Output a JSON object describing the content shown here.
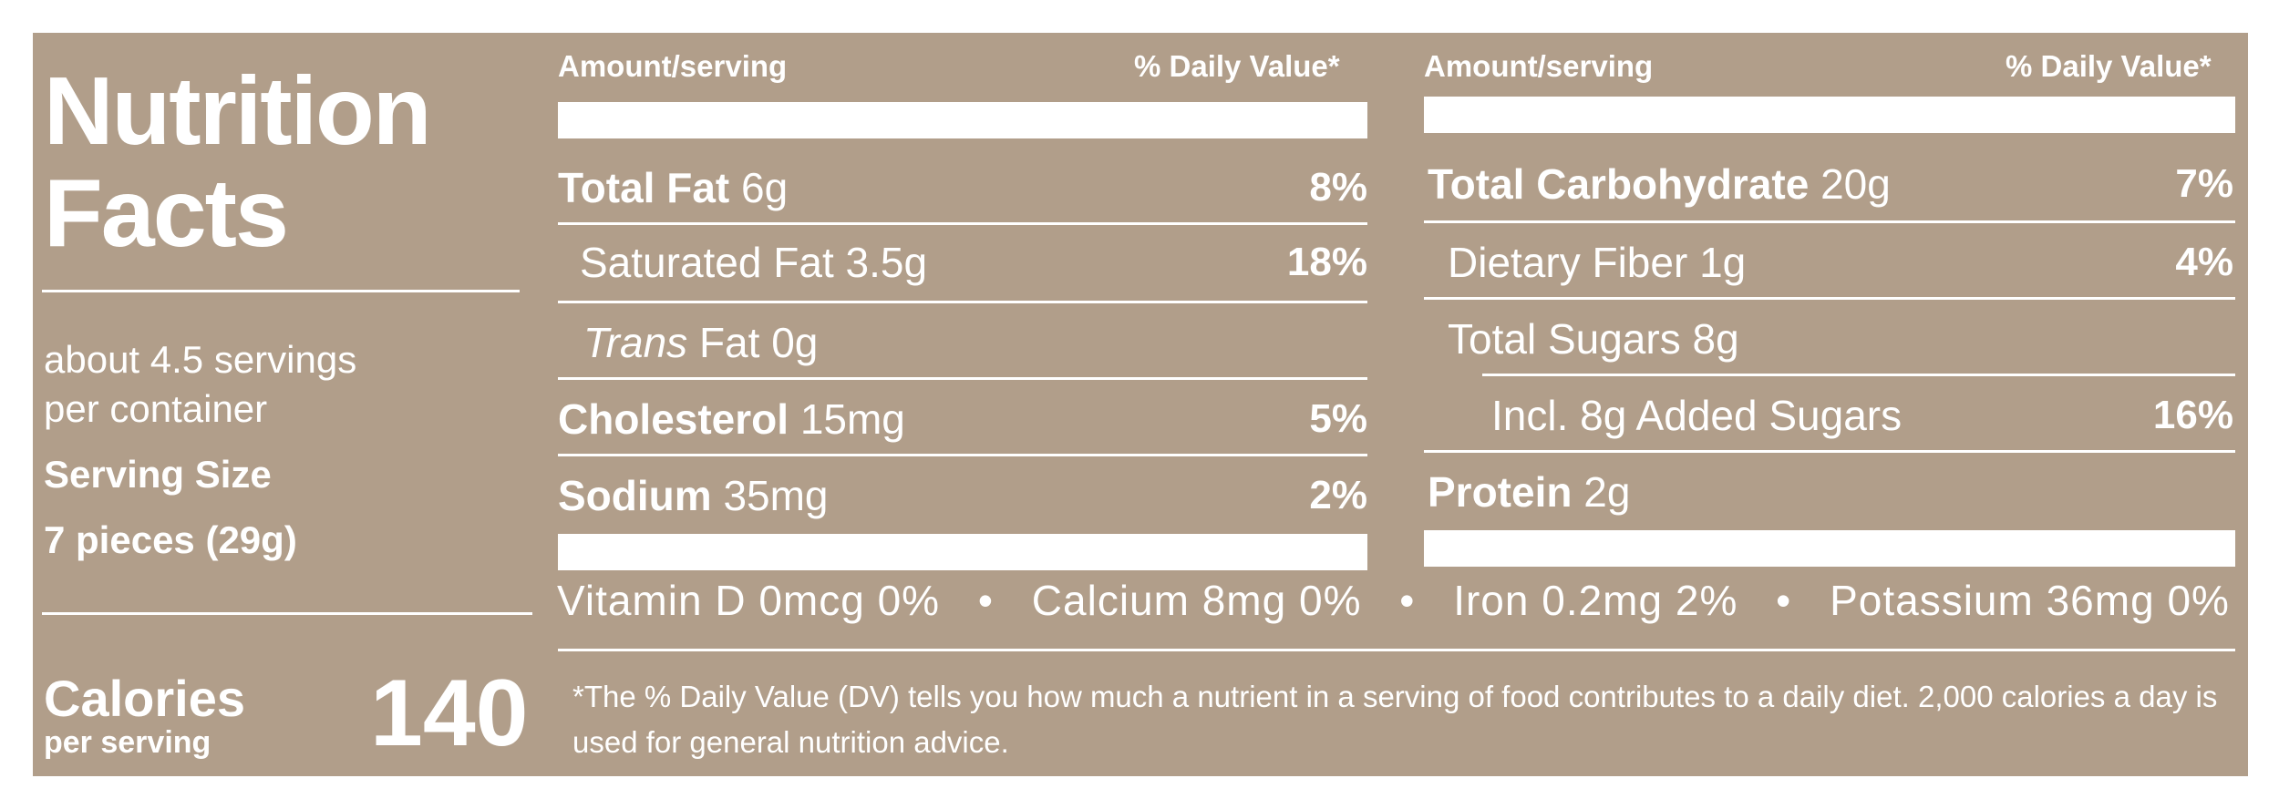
{
  "title_line1": "Nutrition",
  "title_line2": "Facts",
  "servings_line1": "about 4.5 servings",
  "servings_line2": "per container",
  "serving_size_label": "Serving Size",
  "serving_size_value": "7 pieces (29g)",
  "calories_label": "Calories",
  "calories_sub": "per serving",
  "calories_value": "140",
  "left_column": {
    "header_amount": "Amount/serving",
    "header_dv": "% Daily Value*",
    "rows": [
      {
        "name": "Total Fat",
        "amount": " 6g",
        "dv": "8%"
      },
      {
        "name": "Saturated Fat",
        "amount": " 3.5g",
        "dv": "18%"
      },
      {
        "name": "Trans",
        "amount": " Fat 0g",
        "dv": ""
      },
      {
        "name": "Cholesterol",
        "amount": " 15mg",
        "dv": "5%"
      },
      {
        "name": "Sodium",
        "amount": " 35mg",
        "dv": "2%"
      }
    ]
  },
  "right_column": {
    "header_amount": "Amount/serving",
    "header_dv": "% Daily Value*",
    "rows": [
      {
        "name": "Total Carbohydrate",
        "amount": " 20g",
        "dv": "7%"
      },
      {
        "name": "Dietary Fiber",
        "amount": " 1g",
        "dv": "4%"
      },
      {
        "name": "Total Sugars",
        "amount": " 8g",
        "dv": ""
      },
      {
        "name": "Incl. 8g Added Sugars",
        "amount": "",
        "dv": "16%"
      },
      {
        "name": "Protein",
        "amount": " 2g",
        "dv": ""
      }
    ]
  },
  "vitamins": [
    "Vitamin D 0mcg 0%",
    "•",
    "Calcium 8mg 0%",
    "•",
    "Iron 0.2mg 2%",
    "•",
    "Potassium 36mg 0%"
  ],
  "footnote": "*The % Daily Value (DV) tells you how much a nutrient in a serving of food contributes to a daily diet. 2,000 calories a day is used for general nutrition advice.",
  "colors": {
    "panel": "#b19e8a",
    "text": "#ffffff",
    "background": "#ffffff"
  }
}
